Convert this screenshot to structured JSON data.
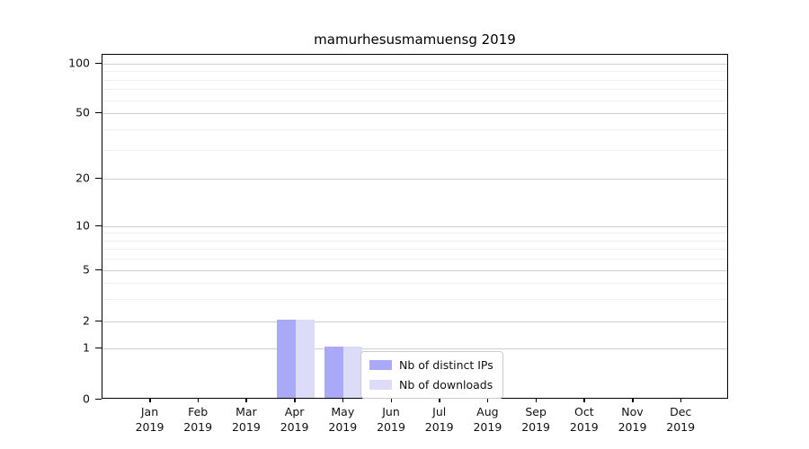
{
  "chart_data": {
    "type": "bar",
    "title": "mamurhesusmamuensg 2019",
    "xlabel": "",
    "ylabel": "",
    "categories": [
      "Jan 2019",
      "Feb 2019",
      "Mar 2019",
      "Apr 2019",
      "May 2019",
      "Jun 2019",
      "Jul 2019",
      "Aug 2019",
      "Sep 2019",
      "Oct 2019",
      "Nov 2019",
      "Dec 2019"
    ],
    "series": [
      {
        "name": "Nb of distinct IPs",
        "color": "#a9a9f7",
        "values": [
          0,
          0,
          0,
          2,
          1,
          0,
          0,
          0,
          0,
          0,
          0,
          0
        ]
      },
      {
        "name": "Nb of downloads",
        "color": "#dcdcf9",
        "values": [
          0,
          0,
          0,
          2,
          1,
          0,
          0,
          0,
          0,
          0,
          0,
          0
        ]
      }
    ],
    "yticks": [
      0,
      1,
      2,
      5,
      10,
      20,
      50,
      100
    ],
    "minor_gridlines": [
      3,
      4,
      6,
      7,
      8,
      9,
      30,
      40,
      60,
      70,
      80,
      90
    ],
    "ylim": [
      0,
      115
    ],
    "scale": "symlog",
    "grid": "horizontal-major-and-minor",
    "legend_position": "inside-lower-center",
    "axis_calibration": {
      "ytick_values": [
        0,
        1,
        2,
        5,
        10,
        20,
        50,
        100
      ],
      "ytick_fractions_from_top": [
        1.0,
        0.8516,
        0.7734,
        0.625,
        0.4974,
        0.3594,
        0.1693,
        0.026
      ]
    },
    "colors": {
      "grid_major": "#cfcfcf",
      "grid_minor": "#efefef",
      "spine": "#000000",
      "tick_text": "#111111",
      "title_text": "#000000"
    }
  }
}
